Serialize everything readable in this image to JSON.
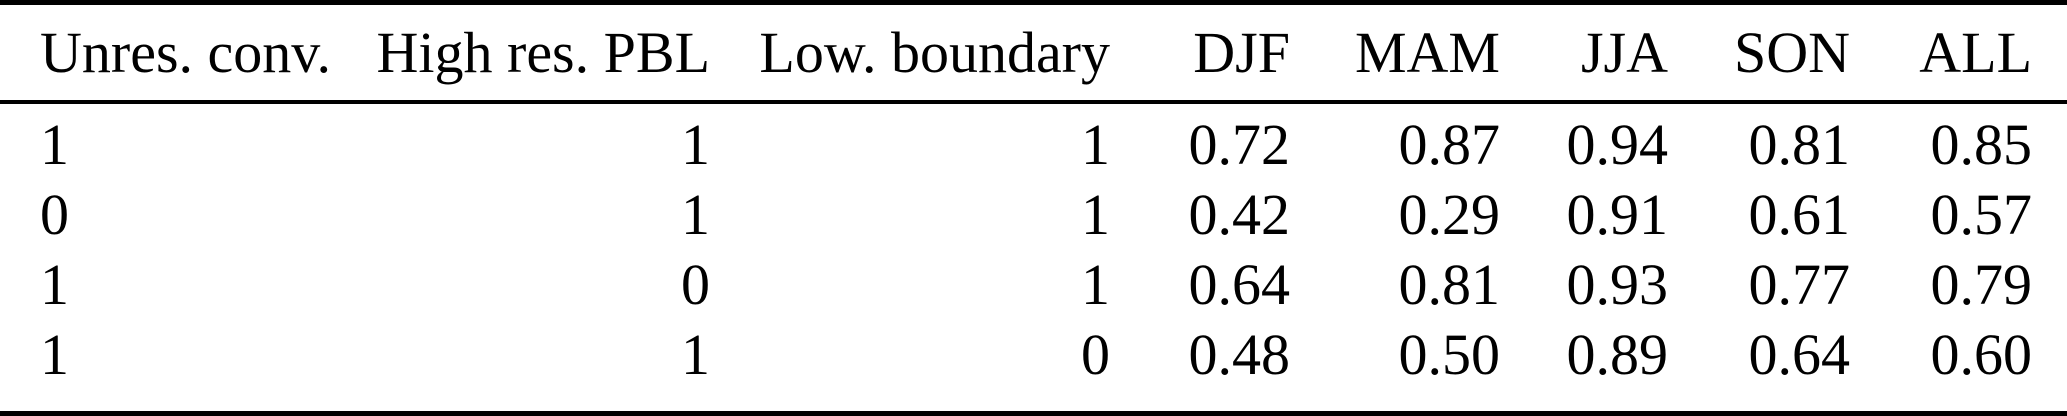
{
  "table": {
    "columns": [
      {
        "label": "Unres. conv.",
        "align": "left"
      },
      {
        "label": "High res. PBL",
        "align": "right"
      },
      {
        "label": "Low. boundary",
        "align": "right"
      },
      {
        "label": "DJF",
        "align": "right"
      },
      {
        "label": "MAM",
        "align": "right"
      },
      {
        "label": "JJA",
        "align": "right"
      },
      {
        "label": "SON",
        "align": "right"
      },
      {
        "label": "ALL",
        "align": "right"
      }
    ],
    "rows": [
      [
        "1",
        "1",
        "1",
        "0.72",
        "0.87",
        "0.94",
        "0.81",
        "0.85"
      ],
      [
        "0",
        "1",
        "1",
        "0.42",
        "0.29",
        "0.91",
        "0.61",
        "0.57"
      ],
      [
        "1",
        "0",
        "1",
        "0.64",
        "0.81",
        "0.93",
        "0.77",
        "0.79"
      ],
      [
        "1",
        "1",
        "0",
        "0.48",
        "0.50",
        "0.89",
        "0.64",
        "0.60"
      ]
    ]
  },
  "colors": {
    "background": "#ffffff",
    "text": "#000000",
    "rule": "#000000"
  }
}
